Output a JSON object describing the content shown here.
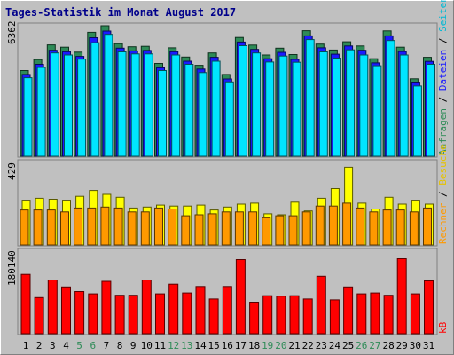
{
  "chart_data": {
    "type": "bar",
    "title": "Tages-Statistik im Monat August 2017",
    "days": [
      "1",
      "2",
      "3",
      "4",
      "5",
      "6",
      "7",
      "8",
      "9",
      "10",
      "11",
      "12",
      "13",
      "14",
      "15",
      "16",
      "17",
      "18",
      "19",
      "20",
      "21",
      "22",
      "23",
      "24",
      "25",
      "26",
      "27",
      "28",
      "29",
      "30",
      "31"
    ],
    "weekend_days": [
      "5",
      "6",
      "12",
      "13",
      "19",
      "20",
      "26",
      "27"
    ],
    "panels": [
      {
        "name": "requests",
        "y_max_label": "6362",
        "right_label": {
          "anfragen": "Anfragen",
          "dateien": "Dateien",
          "seiten": "Seiten",
          "sep": " / "
        },
        "series": [
          {
            "name": "Anfragen",
            "color": "#2e8b57",
            "values": [
              4150,
              4680,
              5390,
              5280,
              5040,
              6000,
              6320,
              5450,
              5300,
              5320,
              4490,
              5250,
              4800,
              4400,
              5000,
              3960,
              5750,
              5380,
              4900,
              5230,
              4920,
              6080,
              5430,
              5140,
              5540,
              5340,
              4720,
              6070,
              5280,
              3750,
              4790
            ]
          },
          {
            "name": "Dateien",
            "color": "#1a1aff",
            "values": [
              3960,
              4450,
              5130,
              5060,
              4830,
              5740,
              6060,
              5230,
              5100,
              5120,
              4280,
              5060,
              4600,
              4220,
              4790,
              3740,
              5530,
              5170,
              4720,
              5030,
              4690,
              5830,
              5250,
              4940,
              5340,
              5130,
              4520,
              5830,
              5070,
              3590,
              4590
            ]
          },
          {
            "name": "Seiten",
            "color": "#00e5ff",
            "values": [
              3800,
              4300,
              5000,
              4900,
              4700,
              5500,
              5900,
              5050,
              4950,
              4950,
              4150,
              4900,
              4450,
              4050,
              4600,
              3600,
              5350,
              5000,
              4560,
              4850,
              4550,
              5650,
              5050,
              4750,
              5150,
              4900,
              4380,
              5600,
              4900,
              3400,
              4450
            ]
          }
        ]
      },
      {
        "name": "visits",
        "y_max_label": "429",
        "right_label": {
          "rechner": "Rechner",
          "besuche": "Besuche",
          "sep": " / "
        },
        "series": [
          {
            "name": "Besuche",
            "color": "#ffff00",
            "values": [
              230,
              240,
              235,
              230,
              250,
              280,
              260,
              245,
              190,
              195,
              205,
              200,
              200,
              205,
              180,
              195,
              210,
              215,
              160,
              155,
              220,
              175,
              240,
              290,
              400,
              215,
              185,
              245,
              210,
              230,
              210
            ]
          },
          {
            "name": "Rechner",
            "color": "#ff9900",
            "values": [
              180,
              180,
              180,
              170,
              190,
              190,
              195,
              190,
              170,
              170,
              190,
              185,
              150,
              155,
              160,
              170,
              170,
              170,
              140,
              150,
              150,
              170,
              200,
              200,
              215,
              190,
              170,
              180,
              180,
              170,
              190
            ]
          }
        ]
      },
      {
        "name": "kb",
        "y_max_label": "180140",
        "right_label": {
          "kb": "kB"
        },
        "series": [
          {
            "name": "kB",
            "color": "#ff0000",
            "values": [
              128000,
              78000,
              116000,
              101000,
              91000,
              86000,
              113000,
              83000,
              83000,
              116000,
              86000,
              107000,
              88000,
              102000,
              75000,
              102000,
              160000,
              68000,
              82000,
              81000,
              82000,
              75000,
              124000,
              73000,
              101000,
              86000,
              88000,
              83000,
              162000,
              86000,
              114000
            ]
          }
        ]
      }
    ],
    "x_labels": [
      "1",
      "2",
      "3",
      "4",
      "5",
      "6",
      "7",
      "8",
      "9",
      "10",
      "11",
      "12",
      "13",
      "14",
      "15",
      "16",
      "17",
      "18",
      "19",
      "20",
      "21",
      "22",
      "23",
      "24",
      "25",
      "26",
      "27",
      "28",
      "29",
      "30",
      "31"
    ]
  }
}
